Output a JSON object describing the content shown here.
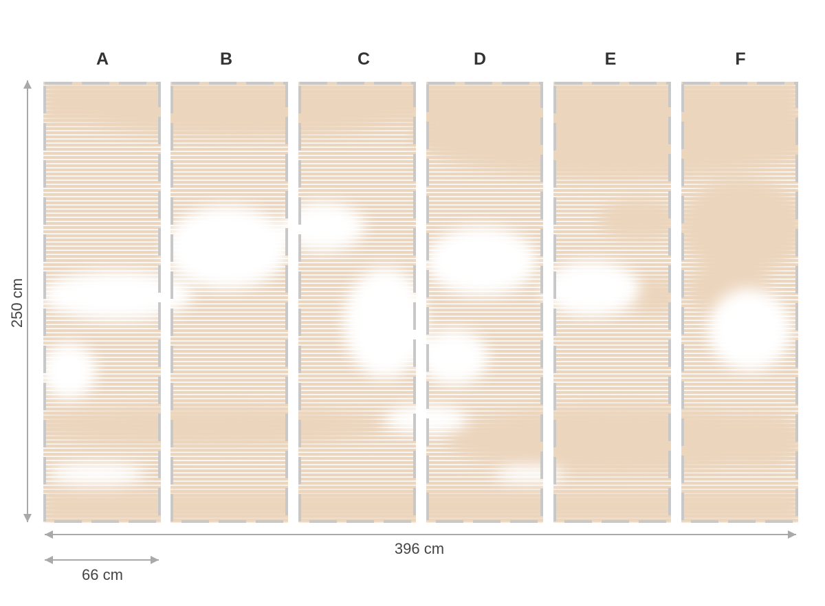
{
  "panels": [
    {
      "label": "A"
    },
    {
      "label": "B"
    },
    {
      "label": "C"
    },
    {
      "label": "D"
    },
    {
      "label": "E"
    },
    {
      "label": "F"
    }
  ],
  "dimensions": {
    "height": "250 cm",
    "total_width": "396 cm",
    "panel_width": "66 cm"
  },
  "colors": {
    "mural": "#ecd5bd",
    "frame": "#c8c8c8",
    "arrow": "#a9a9a9",
    "text": "#333333"
  }
}
